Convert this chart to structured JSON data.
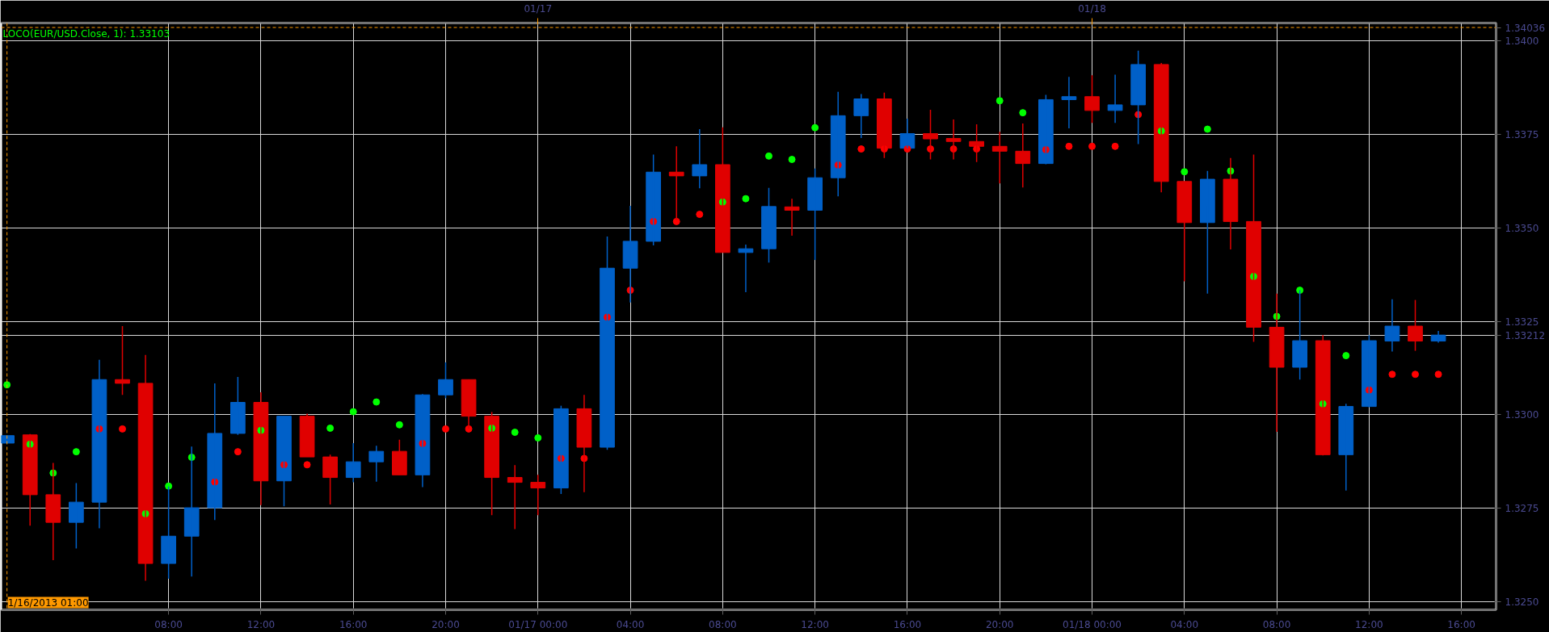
{
  "chart_data": {
    "type": "candlestick",
    "x": [
      "2013-01-16T01:00",
      "2013-01-16T02:00",
      "2013-01-16T03:00",
      "2013-01-16T04:00",
      "2013-01-16T05:00",
      "2013-01-16T06:00",
      "2013-01-16T07:00",
      "2013-01-16T08:00",
      "2013-01-16T09:00",
      "2013-01-16T10:00",
      "2013-01-16T11:00",
      "2013-01-16T12:00",
      "2013-01-16T13:00",
      "2013-01-16T14:00",
      "2013-01-16T15:00",
      "2013-01-16T16:00",
      "2013-01-16T17:00",
      "2013-01-16T18:00",
      "2013-01-16T19:00",
      "2013-01-16T20:00",
      "2013-01-16T21:00",
      "2013-01-16T22:00",
      "2013-01-16T23:00",
      "2013-01-17T00:00",
      "2013-01-17T01:00",
      "2013-01-17T02:00",
      "2013-01-17T03:00",
      "2013-01-17T04:00",
      "2013-01-17T05:00",
      "2013-01-17T06:00",
      "2013-01-17T07:00",
      "2013-01-17T08:00",
      "2013-01-17T09:00",
      "2013-01-17T10:00",
      "2013-01-17T11:00",
      "2013-01-17T12:00",
      "2013-01-17T13:00",
      "2013-01-17T14:00",
      "2013-01-17T15:00",
      "2013-01-17T16:00",
      "2013-01-17T17:00",
      "2013-01-17T18:00",
      "2013-01-17T19:00",
      "2013-01-17T20:00",
      "2013-01-17T21:00",
      "2013-01-17T22:00",
      "2013-01-17T23:00",
      "2013-01-18T00:00",
      "2013-01-18T01:00",
      "2013-01-18T02:00",
      "2013-01-18T03:00",
      "2013-01-18T04:00",
      "2013-01-18T05:00",
      "2013-01-18T06:00",
      "2013-01-18T07:00",
      "2013-01-18T08:00",
      "2013-01-18T09:00",
      "2013-01-18T10:00",
      "2013-01-18T11:00",
      "2013-01-18T12:00",
      "2013-01-18T13:00",
      "2013-01-18T14:00",
      "2013-01-18T15:00"
    ],
    "ohlc": [
      [
        1.32924,
        1.32944,
        1.32924,
        1.32944
      ],
      [
        1.32946,
        1.32948,
        1.32703,
        1.32786
      ],
      [
        1.32786,
        1.32871,
        1.32611,
        1.32712
      ],
      [
        1.32712,
        1.32817,
        1.32642,
        1.32766
      ],
      [
        1.32766,
        1.33147,
        1.32696,
        1.33094
      ],
      [
        1.33094,
        1.33237,
        1.33053,
        1.33084
      ],
      [
        1.33084,
        1.3316,
        1.32556,
        1.32602
      ],
      [
        1.32602,
        1.32808,
        1.32561,
        1.32675
      ],
      [
        1.32675,
        1.32915,
        1.32567,
        1.32751
      ],
      [
        1.32751,
        1.33084,
        1.32718,
        1.3295
      ],
      [
        1.3295,
        1.33101,
        1.32946,
        1.33033
      ],
      [
        1.33033,
        1.3306,
        1.32758,
        1.32823
      ],
      [
        1.32823,
        1.32996,
        1.32755,
        1.32996
      ],
      [
        1.32996,
        1.33003,
        1.32887,
        1.32887
      ],
      [
        1.32887,
        1.32893,
        1.3276,
        1.32832
      ],
      [
        1.32832,
        1.32924,
        1.32819,
        1.32874
      ],
      [
        1.32874,
        1.32917,
        1.32821,
        1.32902
      ],
      [
        1.32902,
        1.32933,
        1.32839,
        1.32839
      ],
      [
        1.32839,
        1.33055,
        1.32806,
        1.33053
      ],
      [
        1.33053,
        1.3314,
        1.33044,
        1.33094
      ],
      [
        1.33094,
        1.33094,
        1.32963,
        1.32996
      ],
      [
        1.32996,
        1.33007,
        1.32731,
        1.32832
      ],
      [
        1.32832,
        1.32865,
        1.32694,
        1.32819
      ],
      [
        1.32819,
        1.32839,
        1.32731,
        1.32804
      ],
      [
        1.32804,
        1.33024,
        1.32788,
        1.33016
      ],
      [
        1.33016,
        1.33053,
        1.32793,
        1.32913
      ],
      [
        1.32913,
        1.33477,
        1.32906,
        1.33392
      ],
      [
        1.33392,
        1.33559,
        1.333,
        1.33464
      ],
      [
        1.33464,
        1.33696,
        1.33453,
        1.33649
      ],
      [
        1.33649,
        1.33718,
        1.33521,
        1.33639
      ],
      [
        1.33639,
        1.33764,
        1.33606,
        1.33669
      ],
      [
        1.33669,
        1.33769,
        1.33434,
        1.33434
      ],
      [
        1.33434,
        1.33455,
        1.33328,
        1.33444
      ],
      [
        1.33444,
        1.33607,
        1.33407,
        1.33557
      ],
      [
        1.33556,
        1.33578,
        1.33479,
        1.33547
      ],
      [
        1.33547,
        1.33659,
        1.33414,
        1.33634
      ],
      [
        1.33634,
        1.33864,
        1.33584,
        1.338
      ],
      [
        1.338,
        1.33858,
        1.3374,
        1.33845
      ],
      [
        1.33845,
        1.33862,
        1.33687,
        1.33713
      ],
      [
        1.33713,
        1.33792,
        1.33713,
        1.33752
      ],
      [
        1.33752,
        1.33816,
        1.33683,
        1.33738
      ],
      [
        1.33739,
        1.3379,
        1.33683,
        1.33731
      ],
      [
        1.33731,
        1.33777,
        1.33676,
        1.33718
      ],
      [
        1.33718,
        1.33757,
        1.33619,
        1.33705
      ],
      [
        1.33705,
        1.33779,
        1.33608,
        1.33672
      ],
      [
        1.33672,
        1.33856,
        1.3367,
        1.33843
      ],
      [
        1.33843,
        1.33904,
        1.33766,
        1.33851
      ],
      [
        1.33851,
        1.33908,
        1.33781,
        1.33814
      ],
      [
        1.33814,
        1.3391,
        1.33781,
        1.33829
      ],
      [
        1.33829,
        1.33974,
        1.33724,
        1.33937
      ],
      [
        1.33937,
        1.33941,
        1.33595,
        1.33624
      ],
      [
        1.33624,
        1.33624,
        1.33357,
        1.33514
      ],
      [
        1.33514,
        1.33652,
        1.33324,
        1.3363
      ],
      [
        1.3363,
        1.33687,
        1.33442,
        1.33517
      ],
      [
        1.33517,
        1.33696,
        1.33195,
        1.33234
      ],
      [
        1.33234,
        1.33324,
        1.32954,
        1.33127
      ],
      [
        1.33127,
        1.33333,
        1.33094,
        1.33198
      ],
      [
        1.33198,
        1.33213,
        1.32891,
        1.32893
      ],
      [
        1.32893,
        1.33029,
        1.32797,
        1.33022
      ],
      [
        1.33022,
        1.33213,
        1.3302,
        1.33198
      ],
      [
        1.33197,
        1.33309,
        1.33169,
        1.33237
      ],
      [
        1.33237,
        1.33307,
        1.33171,
        1.33197
      ],
      [
        1.33197,
        1.33224,
        1.33193,
        1.33213
      ]
    ],
    "colors": [
      "#0060c8",
      "#e00000",
      "#e00000",
      "#0060c8",
      "#0060c8",
      "#e00000",
      "#e00000",
      "#0060c8",
      "#0060c8",
      "#0060c8",
      "#0060c8",
      "#e00000",
      "#0060c8",
      "#e00000",
      "#e00000",
      "#0060c8",
      "#0060c8",
      "#e00000",
      "#0060c8",
      "#0060c8",
      "#e00000",
      "#e00000",
      "#e00000",
      "#e00000",
      "#0060c8",
      "#e00000",
      "#0060c8",
      "#0060c8",
      "#0060c8",
      "#e00000",
      "#0060c8",
      "#e00000",
      "#0060c8",
      "#0060c8",
      "#e00000",
      "#0060c8",
      "#0060c8",
      "#0060c8",
      "#e00000",
      "#0060c8",
      "#e00000",
      "#e00000",
      "#e00000",
      "#e00000",
      "#e00000",
      "#0060c8",
      "#0060c8",
      "#e00000",
      "#0060c8",
      "#0060c8",
      "#e00000",
      "#e00000",
      "#0060c8",
      "#e00000",
      "#e00000",
      "#e00000",
      "#0060c8",
      "#e00000",
      "#0060c8",
      "#0060c8",
      "#0060c8",
      "#e00000",
      "#0060c8"
    ],
    "series": [
      {
        "type": "scatter",
        "name": "LOCO(EUR/USD.Close, 1): 1.33103",
        "color": "#00ff00",
        "marker": "circle",
        "values": [
          1.3308,
          1.32921,
          1.32844,
          1.32901,
          1.32962,
          1.32962,
          1.32735,
          1.32809,
          1.32886,
          1.3282,
          1.32901,
          1.32958,
          1.32866,
          1.32866,
          1.32964,
          1.33008,
          1.33034,
          1.32973,
          1.32923,
          1.32962,
          1.32962,
          1.32964,
          1.32953,
          1.32938,
          1.32883,
          1.32883,
          1.33261,
          1.33333,
          1.33517,
          1.33517,
          1.33536,
          1.33569,
          1.33578,
          1.33692,
          1.33683,
          1.33768,
          1.33668,
          1.33711,
          1.33711,
          1.33711,
          1.33711,
          1.33711,
          1.33711,
          1.3384,
          1.33808,
          1.33709,
          1.33718,
          1.33718,
          1.33718,
          1.33803,
          1.33759,
          1.3365,
          1.33764,
          1.33652,
          1.3337,
          1.33263,
          1.33333,
          1.33029,
          1.33158,
          1.33066,
          1.33108,
          1.33108,
          1.33108
        ],
        "colors": [
          "#00ff00",
          "#00ff00",
          "#00ff00",
          "#00ff00",
          "#ff0000",
          "#ff0000",
          "#00ff00",
          "#00ff00",
          "#00ff00",
          "#ff0000",
          "#ff0000",
          "#00ff00",
          "#ff0000",
          "#ff0000",
          "#00ff00",
          "#00ff00",
          "#00ff00",
          "#00ff00",
          "#ff0000",
          "#ff0000",
          "#ff0000",
          "#00ff00",
          "#00ff00",
          "#00ff00",
          "#ff0000",
          "#ff0000",
          "#ff0000",
          "#ff0000",
          "#ff0000",
          "#ff0000",
          "#ff0000",
          "#00ff00",
          "#00ff00",
          "#00ff00",
          "#00ff00",
          "#00ff00",
          "#ff0000",
          "#ff0000",
          "#ff0000",
          "#ff0000",
          "#ff0000",
          "#ff0000",
          "#ff0000",
          "#00ff00",
          "#00ff00",
          "#ff0000",
          "#ff0000",
          "#ff0000",
          "#ff0000",
          "#ff0000",
          "#00ff00",
          "#00ff00",
          "#00ff00",
          "#00ff00",
          "#00ff00",
          "#00ff00",
          "#00ff00",
          "#00ff00",
          "#00ff00",
          "#ff0000",
          "#ff0000",
          "#ff0000",
          "#ff0000"
        ]
      }
    ],
    "xlim": [
      "2013-01-16T00:45",
      "2013-01-18T17:30"
    ],
    "xticks": [
      {
        "value": "2013-01-16T08:00",
        "label": "08:00"
      },
      {
        "value": "2013-01-16T12:00",
        "label": "12:00"
      },
      {
        "value": "2013-01-16T16:00",
        "label": "16:00"
      },
      {
        "value": "2013-01-16T20:00",
        "label": "20:00"
      },
      {
        "value": "2013-01-17T00:00",
        "label": "01/17 00:00"
      },
      {
        "value": "2013-01-17T04:00",
        "label": "04:00"
      },
      {
        "value": "2013-01-17T08:00",
        "label": "08:00"
      },
      {
        "value": "2013-01-17T12:00",
        "label": "12:00"
      },
      {
        "value": "2013-01-17T16:00",
        "label": "16:00"
      },
      {
        "value": "2013-01-17T20:00",
        "label": "20:00"
      },
      {
        "value": "2013-01-18T00:00",
        "label": "01/18 00:00"
      },
      {
        "value": "2013-01-18T04:00",
        "label": "04:00"
      },
      {
        "value": "2013-01-18T08:00",
        "label": "08:00"
      },
      {
        "value": "2013-01-18T12:00",
        "label": "12:00"
      },
      {
        "value": "2013-01-18T16:00",
        "label": "16:00"
      }
    ],
    "x2lim": [
      "2013-01-16T00:45",
      "2013-01-18T17:30"
    ],
    "x2ticks": [
      {
        "value": "2013-01-17T00:00",
        "label": "01/17"
      },
      {
        "value": "2013-01-18T00:00",
        "label": "01/18"
      }
    ],
    "ylim": [
      1.32478,
      1.34048
    ],
    "yticks": [
      {
        "value": 1.325,
        "label": "1.3250"
      },
      {
        "value": 1.3275,
        "label": "1.3275"
      },
      {
        "value": 1.33,
        "label": "1.3300"
      },
      {
        "value": 1.33212,
        "label": "1.33212"
      },
      {
        "value": 1.3325,
        "label": "1.3325"
      },
      {
        "value": 1.335,
        "label": "1.3350"
      },
      {
        "value": 1.3375,
        "label": "1.3375"
      },
      {
        "value": 1.34,
        "label": "1.3400"
      }
    ],
    "ref_lines": [
      {
        "axis": "y",
        "value": 1.34036,
        "label": "1.34036",
        "color": "#ff9900",
        "line_style": "dashed"
      },
      {
        "axis": "x",
        "value": "2013-01-16T01:00",
        "label": "1/16/2013 01:00",
        "color": "#ff9900",
        "line_style": "dashed"
      }
    ],
    "grid": true,
    "legend": "top left"
  }
}
